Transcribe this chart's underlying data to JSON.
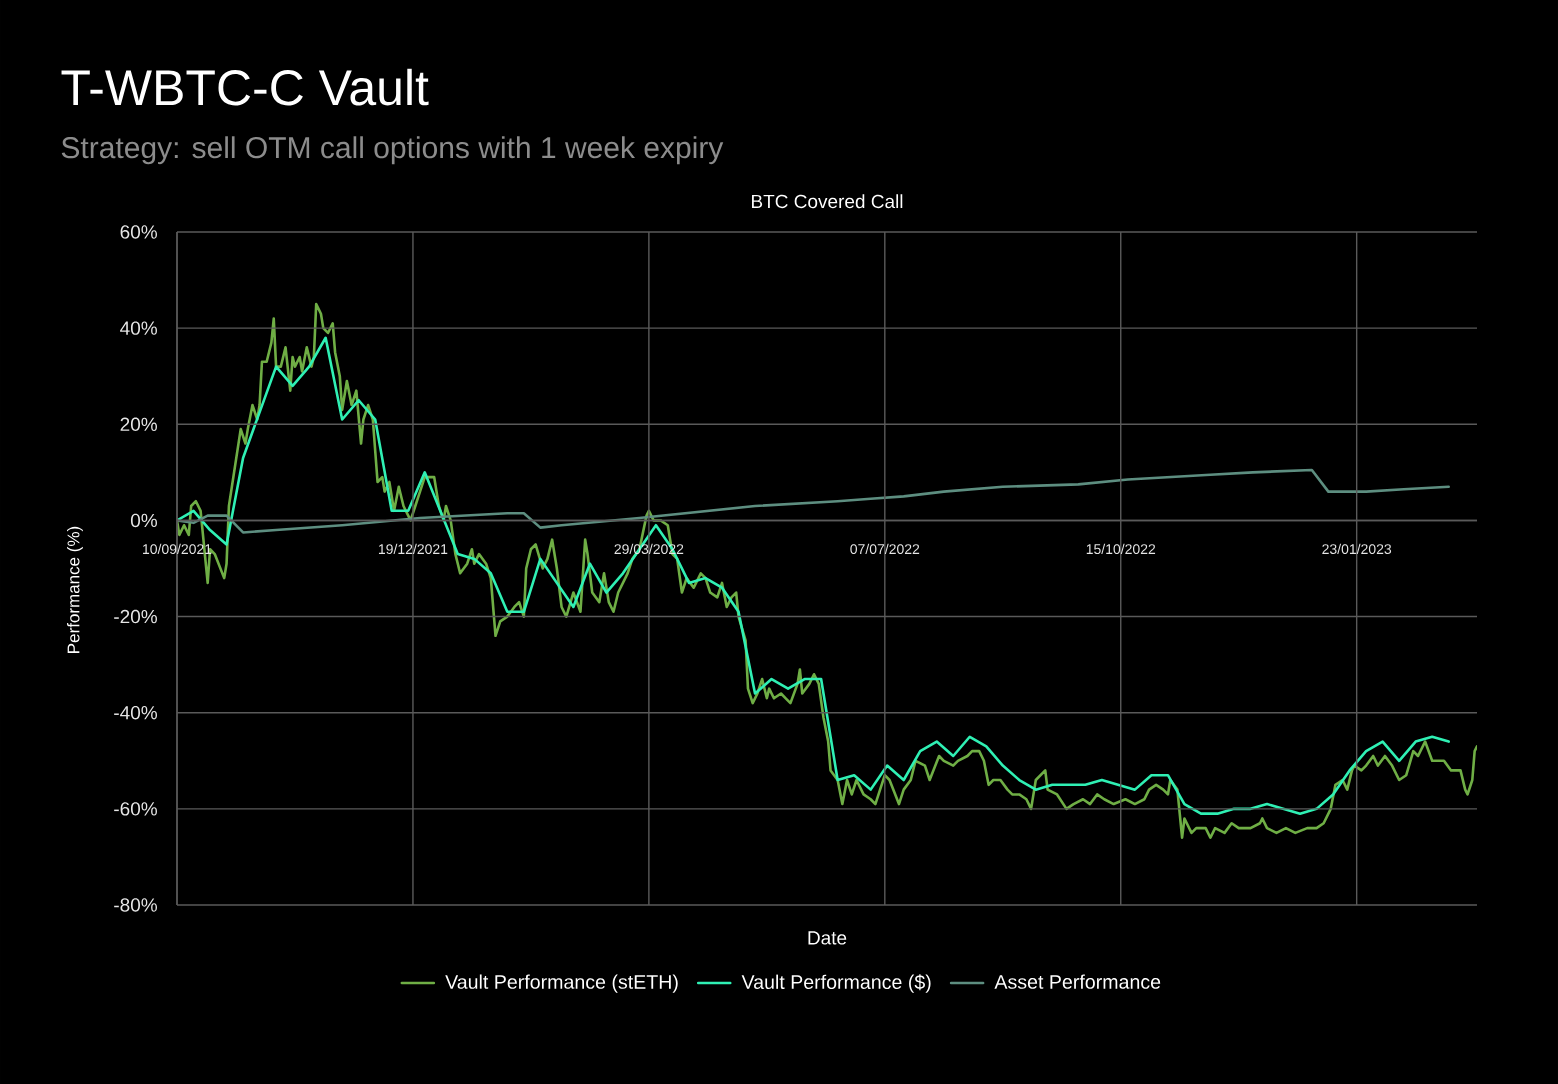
{
  "chart_data": {
    "type": "line",
    "title": "T-WBTC-C Vault",
    "subtitle": "Strategy: sell OTM call options with 1 week expiry",
    "annotations": [
      "BTC Covered Call"
    ],
    "xlabel": "Date",
    "ylabel": "Performance (%)",
    "xlim": [
      "2021-09-10",
      "2023-03-15"
    ],
    "xticks": [
      {
        "value": "2021-09-10",
        "label": "10/09/2021"
      },
      {
        "value": "2021-12-19",
        "label": "19/12/2021"
      },
      {
        "value": "2022-03-29",
        "label": "29/03/2022"
      },
      {
        "value": "2022-07-07",
        "label": "07/07/2022"
      },
      {
        "value": "2022-10-15",
        "label": "15/10/2022"
      },
      {
        "value": "2023-01-23",
        "label": "23/01/2023"
      }
    ],
    "ylim": [
      -80,
      60
    ],
    "yticks": [
      {
        "value": -80,
        "label": "-80%"
      },
      {
        "value": -60,
        "label": "-60%"
      },
      {
        "value": -40,
        "label": "-40%"
      },
      {
        "value": -20,
        "label": "-20%"
      },
      {
        "value": 0,
        "label": "0%"
      },
      {
        "value": 20,
        "label": "20%"
      },
      {
        "value": 40,
        "label": "40%"
      },
      {
        "value": 60,
        "label": "60%"
      }
    ],
    "grid": true,
    "legend": "bottom",
    "series": [
      {
        "name": "Vault Performance (stETH)",
        "color": "#6fae45",
        "x": [
          "2021-09-10",
          "2021-09-11",
          "2021-09-13",
          "2021-09-15",
          "2021-09-16",
          "2021-09-18",
          "2021-09-20",
          "2021-09-23",
          "2021-09-24",
          "2021-09-26",
          "2021-09-30",
          "2021-10-01",
          "2021-10-02",
          "2021-10-07",
          "2021-10-09",
          "2021-10-10",
          "2021-10-12",
          "2021-10-14",
          "2021-10-15",
          "2021-10-16",
          "2021-10-18",
          "2021-10-20",
          "2021-10-21",
          "2021-10-22",
          "2021-10-24",
          "2021-10-26",
          "2021-10-28",
          "2021-10-29",
          "2021-10-30",
          "2021-11-01",
          "2021-11-02",
          "2021-11-04",
          "2021-11-06",
          "2021-11-07",
          "2021-11-08",
          "2021-11-10",
          "2021-11-11",
          "2021-11-13",
          "2021-11-15",
          "2021-11-16",
          "2021-11-18",
          "2021-11-19",
          "2021-11-21",
          "2021-11-23",
          "2021-11-25",
          "2021-11-27",
          "2021-11-28",
          "2021-11-30",
          "2021-12-02",
          "2021-12-04",
          "2021-12-06",
          "2021-12-07",
          "2021-12-09",
          "2021-12-11",
          "2021-12-13",
          "2021-12-15",
          "2021-12-18",
          "2021-12-20",
          "2021-12-22",
          "2021-12-24",
          "2021-12-28",
          "2021-12-30",
          "2022-01-01",
          "2022-01-02",
          "2022-01-04",
          "2022-01-06",
          "2022-01-08",
          "2022-01-11",
          "2022-01-13",
          "2022-01-14",
          "2022-01-16",
          "2022-01-19",
          "2022-01-21",
          "2022-01-23",
          "2022-01-25",
          "2022-01-28",
          "2022-01-31",
          "2022-02-02",
          "2022-02-04",
          "2022-02-05",
          "2022-02-07",
          "2022-02-09",
          "2022-02-12",
          "2022-02-14",
          "2022-02-16",
          "2022-02-18",
          "2022-02-20",
          "2022-02-22",
          "2022-02-25",
          "2022-02-28",
          "2022-03-02",
          "2022-03-03",
          "2022-03-05",
          "2022-03-08",
          "2022-03-10",
          "2022-03-12",
          "2022-03-14",
          "2022-03-16",
          "2022-03-20",
          "2022-03-22",
          "2022-03-25",
          "2022-03-28",
          "2022-03-29",
          "2022-03-31",
          "2022-04-03",
          "2022-04-06",
          "2022-04-08",
          "2022-04-10",
          "2022-04-12",
          "2022-04-14",
          "2022-04-17",
          "2022-04-20",
          "2022-04-22",
          "2022-04-24",
          "2022-04-27",
          "2022-04-29",
          "2022-05-01",
          "2022-05-03",
          "2022-05-05",
          "2022-05-06",
          "2022-05-09",
          "2022-05-10",
          "2022-05-12",
          "2022-05-14",
          "2022-05-16",
          "2022-05-18",
          "2022-05-19",
          "2022-05-21",
          "2022-05-24",
          "2022-05-26",
          "2022-05-28",
          "2022-05-31",
          "2022-06-01",
          "2022-06-02",
          "2022-06-05",
          "2022-06-07",
          "2022-06-09",
          "2022-06-11",
          "2022-06-13",
          "2022-06-14",
          "2022-06-17",
          "2022-06-19",
          "2022-06-21",
          "2022-06-23",
          "2022-06-25",
          "2022-06-28",
          "2022-07-01",
          "2022-07-03",
          "2022-07-05",
          "2022-07-07",
          "2022-07-09",
          "2022-07-13",
          "2022-07-15",
          "2022-07-18",
          "2022-07-20",
          "2022-07-24",
          "2022-07-26",
          "2022-07-30",
          "2022-08-01",
          "2022-08-05",
          "2022-08-07",
          "2022-08-11",
          "2022-08-13",
          "2022-08-16",
          "2022-08-18",
          "2022-08-20",
          "2022-08-22",
          "2022-08-25",
          "2022-08-28",
          "2022-08-30",
          "2022-09-02",
          "2022-09-05",
          "2022-09-07",
          "2022-09-09",
          "2022-09-13",
          "2022-09-14",
          "2022-09-18",
          "2022-09-22",
          "2022-09-25",
          "2022-09-29",
          "2022-10-02",
          "2022-10-05",
          "2022-10-08",
          "2022-10-12",
          "2022-10-17",
          "2022-10-21",
          "2022-10-25",
          "2022-10-27",
          "2022-10-30",
          "2022-11-02",
          "2022-11-04",
          "2022-11-05",
          "2022-11-08",
          "2022-11-10",
          "2022-11-11",
          "2022-11-14",
          "2022-11-16",
          "2022-11-20",
          "2022-11-22",
          "2022-11-24",
          "2022-11-28",
          "2022-12-01",
          "2022-12-04",
          "2022-12-09",
          "2022-12-13",
          "2022-12-14",
          "2022-12-16",
          "2022-12-20",
          "2022-12-24",
          "2022-12-28",
          "2023-01-02",
          "2023-01-06",
          "2023-01-09",
          "2023-01-12",
          "2023-01-14",
          "2023-01-17",
          "2023-01-19",
          "2023-01-21",
          "2023-01-22",
          "2023-01-25",
          "2023-01-27",
          "2023-01-30",
          "2023-02-01",
          "2023-02-04",
          "2023-02-07",
          "2023-02-10",
          "2023-02-13",
          "2023-02-16",
          "2023-02-18",
          "2023-02-21",
          "2023-02-24",
          "2023-02-27",
          "2023-03-01",
          "2023-03-04",
          "2023-03-08",
          "2023-03-10",
          "2023-03-11",
          "2023-03-13",
          "2023-03-14",
          "2023-03-15"
        ],
        "values": [
          0,
          -3,
          -1,
          -3,
          3,
          4,
          2,
          -13,
          -6,
          -7,
          -12,
          -9,
          3,
          19,
          16,
          19,
          24,
          21,
          24,
          33,
          33,
          37,
          42,
          32,
          32,
          36,
          27,
          34,
          32,
          34,
          31,
          36,
          32,
          34,
          45,
          43,
          40,
          39,
          41,
          35,
          30,
          23,
          29,
          24,
          27,
          16,
          21,
          24,
          21,
          8,
          9,
          6,
          8,
          2,
          7,
          3,
          0,
          3,
          6,
          9,
          9,
          3,
          0,
          3,
          0,
          -7,
          -11,
          -9,
          -6,
          -9,
          -7,
          -9,
          -12,
          -24,
          -21,
          -20,
          -18,
          -17,
          -20,
          -10,
          -6,
          -5,
          -10,
          -8,
          -4,
          -10,
          -18,
          -20,
          -15,
          -19,
          -4,
          -7,
          -15,
          -17,
          -11,
          -17,
          -19,
          -15,
          -11,
          -8,
          -6,
          1,
          2,
          0,
          0,
          -1,
          -7,
          -8,
          -15,
          -12,
          -14,
          -11,
          -12,
          -15,
          -16,
          -13,
          -18,
          -16,
          -15,
          -20,
          -25,
          -35,
          -38,
          -36,
          -33,
          -37,
          -35,
          -37,
          -36,
          -37,
          -38,
          -34,
          -31,
          -36,
          -34,
          -32,
          -34,
          -41,
          -46,
          -52,
          -54,
          -59,
          -54,
          -57,
          -54,
          -57,
          -58,
          -59,
          -56,
          -53,
          -54,
          -59,
          -56,
          -54,
          -50,
          -51,
          -54,
          -49,
          -50,
          -51,
          -50,
          -49,
          -48,
          -48,
          -50,
          -55,
          -54,
          -54,
          -56,
          -57,
          -57,
          -58,
          -60,
          -54,
          -52,
          -56,
          -57,
          -60,
          -59,
          -58,
          -59,
          -57,
          -58,
          -59,
          -58,
          -59,
          -58,
          -56,
          -55,
          -56,
          -57,
          -54,
          -56,
          -66,
          -62,
          -65,
          -64,
          -64,
          -66,
          -64,
          -65,
          -63,
          -64,
          -64,
          -63,
          -62,
          -64,
          -65,
          -64,
          -65,
          -64,
          -64,
          -63,
          -60,
          -55,
          -54,
          -56,
          -52,
          -51,
          -52,
          -51,
          -49,
          -51,
          -49,
          -51,
          -54,
          -53,
          -48,
          -49,
          -46,
          -50,
          -50,
          -50,
          -52,
          -52,
          -56,
          -57,
          -54,
          -48,
          -47
        ]
      },
      {
        "name": "Vault Performance ($)",
        "color": "#2ff0b4",
        "x": [
          "2021-09-10",
          "2021-09-17",
          "2021-09-24",
          "2021-10-01",
          "2021-10-08",
          "2021-10-22",
          "2021-10-29",
          "2021-11-05",
          "2021-11-12",
          "2021-11-19",
          "2021-11-26",
          "2021-12-03",
          "2021-12-10",
          "2021-12-17",
          "2021-12-24",
          "2022-01-07",
          "2022-01-14",
          "2022-01-21",
          "2022-01-28",
          "2022-02-04",
          "2022-02-11",
          "2022-02-25",
          "2022-03-04",
          "2022-03-11",
          "2022-03-18",
          "2022-04-01",
          "2022-04-08",
          "2022-04-15",
          "2022-04-22",
          "2022-04-29",
          "2022-05-06",
          "2022-05-13",
          "2022-05-20",
          "2022-05-27",
          "2022-06-03",
          "2022-06-10",
          "2022-06-17",
          "2022-06-24",
          "2022-07-01",
          "2022-07-08",
          "2022-07-15",
          "2022-07-22",
          "2022-07-29",
          "2022-08-05",
          "2022-08-12",
          "2022-08-19",
          "2022-08-26",
          "2022-09-02",
          "2022-09-09",
          "2022-09-16",
          "2022-09-23",
          "2022-09-30",
          "2022-10-07",
          "2022-10-14",
          "2022-10-21",
          "2022-10-28",
          "2022-11-04",
          "2022-11-11",
          "2022-11-18",
          "2022-11-25",
          "2022-12-02",
          "2022-12-09",
          "2022-12-16",
          "2022-12-23",
          "2022-12-30",
          "2023-01-06",
          "2023-01-13",
          "2023-01-20",
          "2023-01-27",
          "2023-02-03",
          "2023-02-10",
          "2023-02-17",
          "2023-02-24",
          "2023-03-03"
        ],
        "values": [
          0,
          2,
          -2,
          -5,
          13,
          32,
          28,
          32,
          38,
          21,
          25,
          21,
          2,
          2,
          10,
          -7,
          -8,
          -11,
          -19,
          -19,
          -8,
          -18,
          -9,
          -15,
          -11,
          -1,
          -6,
          -13,
          -12,
          -14,
          -19,
          -36,
          -33,
          -35,
          -33,
          -33,
          -54,
          -53,
          -56,
          -51,
          -54,
          -48,
          -46,
          -49,
          -45,
          -47,
          -51,
          -54,
          -56,
          -55,
          -55,
          -55,
          -54,
          -55,
          -56,
          -53,
          -53,
          -59,
          -61,
          -61,
          -60,
          -60,
          -59,
          -60,
          -61,
          -60,
          -57,
          -52,
          -48,
          -46,
          -50,
          -46,
          -45,
          -46
        ]
      },
      {
        "name": "Asset Performance",
        "color": "#5d8e80",
        "x": [
          "2021-09-10",
          "2021-09-17",
          "2021-09-23",
          "2021-10-01",
          "2021-10-08",
          "2021-10-22",
          "2021-11-19",
          "2021-12-22",
          "2022-01-28",
          "2022-02-04",
          "2022-02-11",
          "2022-02-20",
          "2022-03-25",
          "2022-05-13",
          "2022-06-17",
          "2022-07-01",
          "2022-07-15",
          "2022-08-01",
          "2022-08-26",
          "2022-09-27",
          "2022-10-18",
          "2022-11-22",
          "2022-12-10",
          "2023-01-04",
          "2023-01-11",
          "2023-01-27",
          "2023-02-12",
          "2023-03-03"
        ],
        "values": [
          0,
          -0.5,
          1,
          1,
          -2.5,
          -2,
          -1,
          0.5,
          1.5,
          1.5,
          -1.5,
          -1,
          0.5,
          3,
          4,
          4.5,
          5,
          6,
          7,
          7.5,
          8.5,
          9.5,
          10,
          10.5,
          6,
          6,
          6.5,
          7
        ]
      }
    ]
  }
}
